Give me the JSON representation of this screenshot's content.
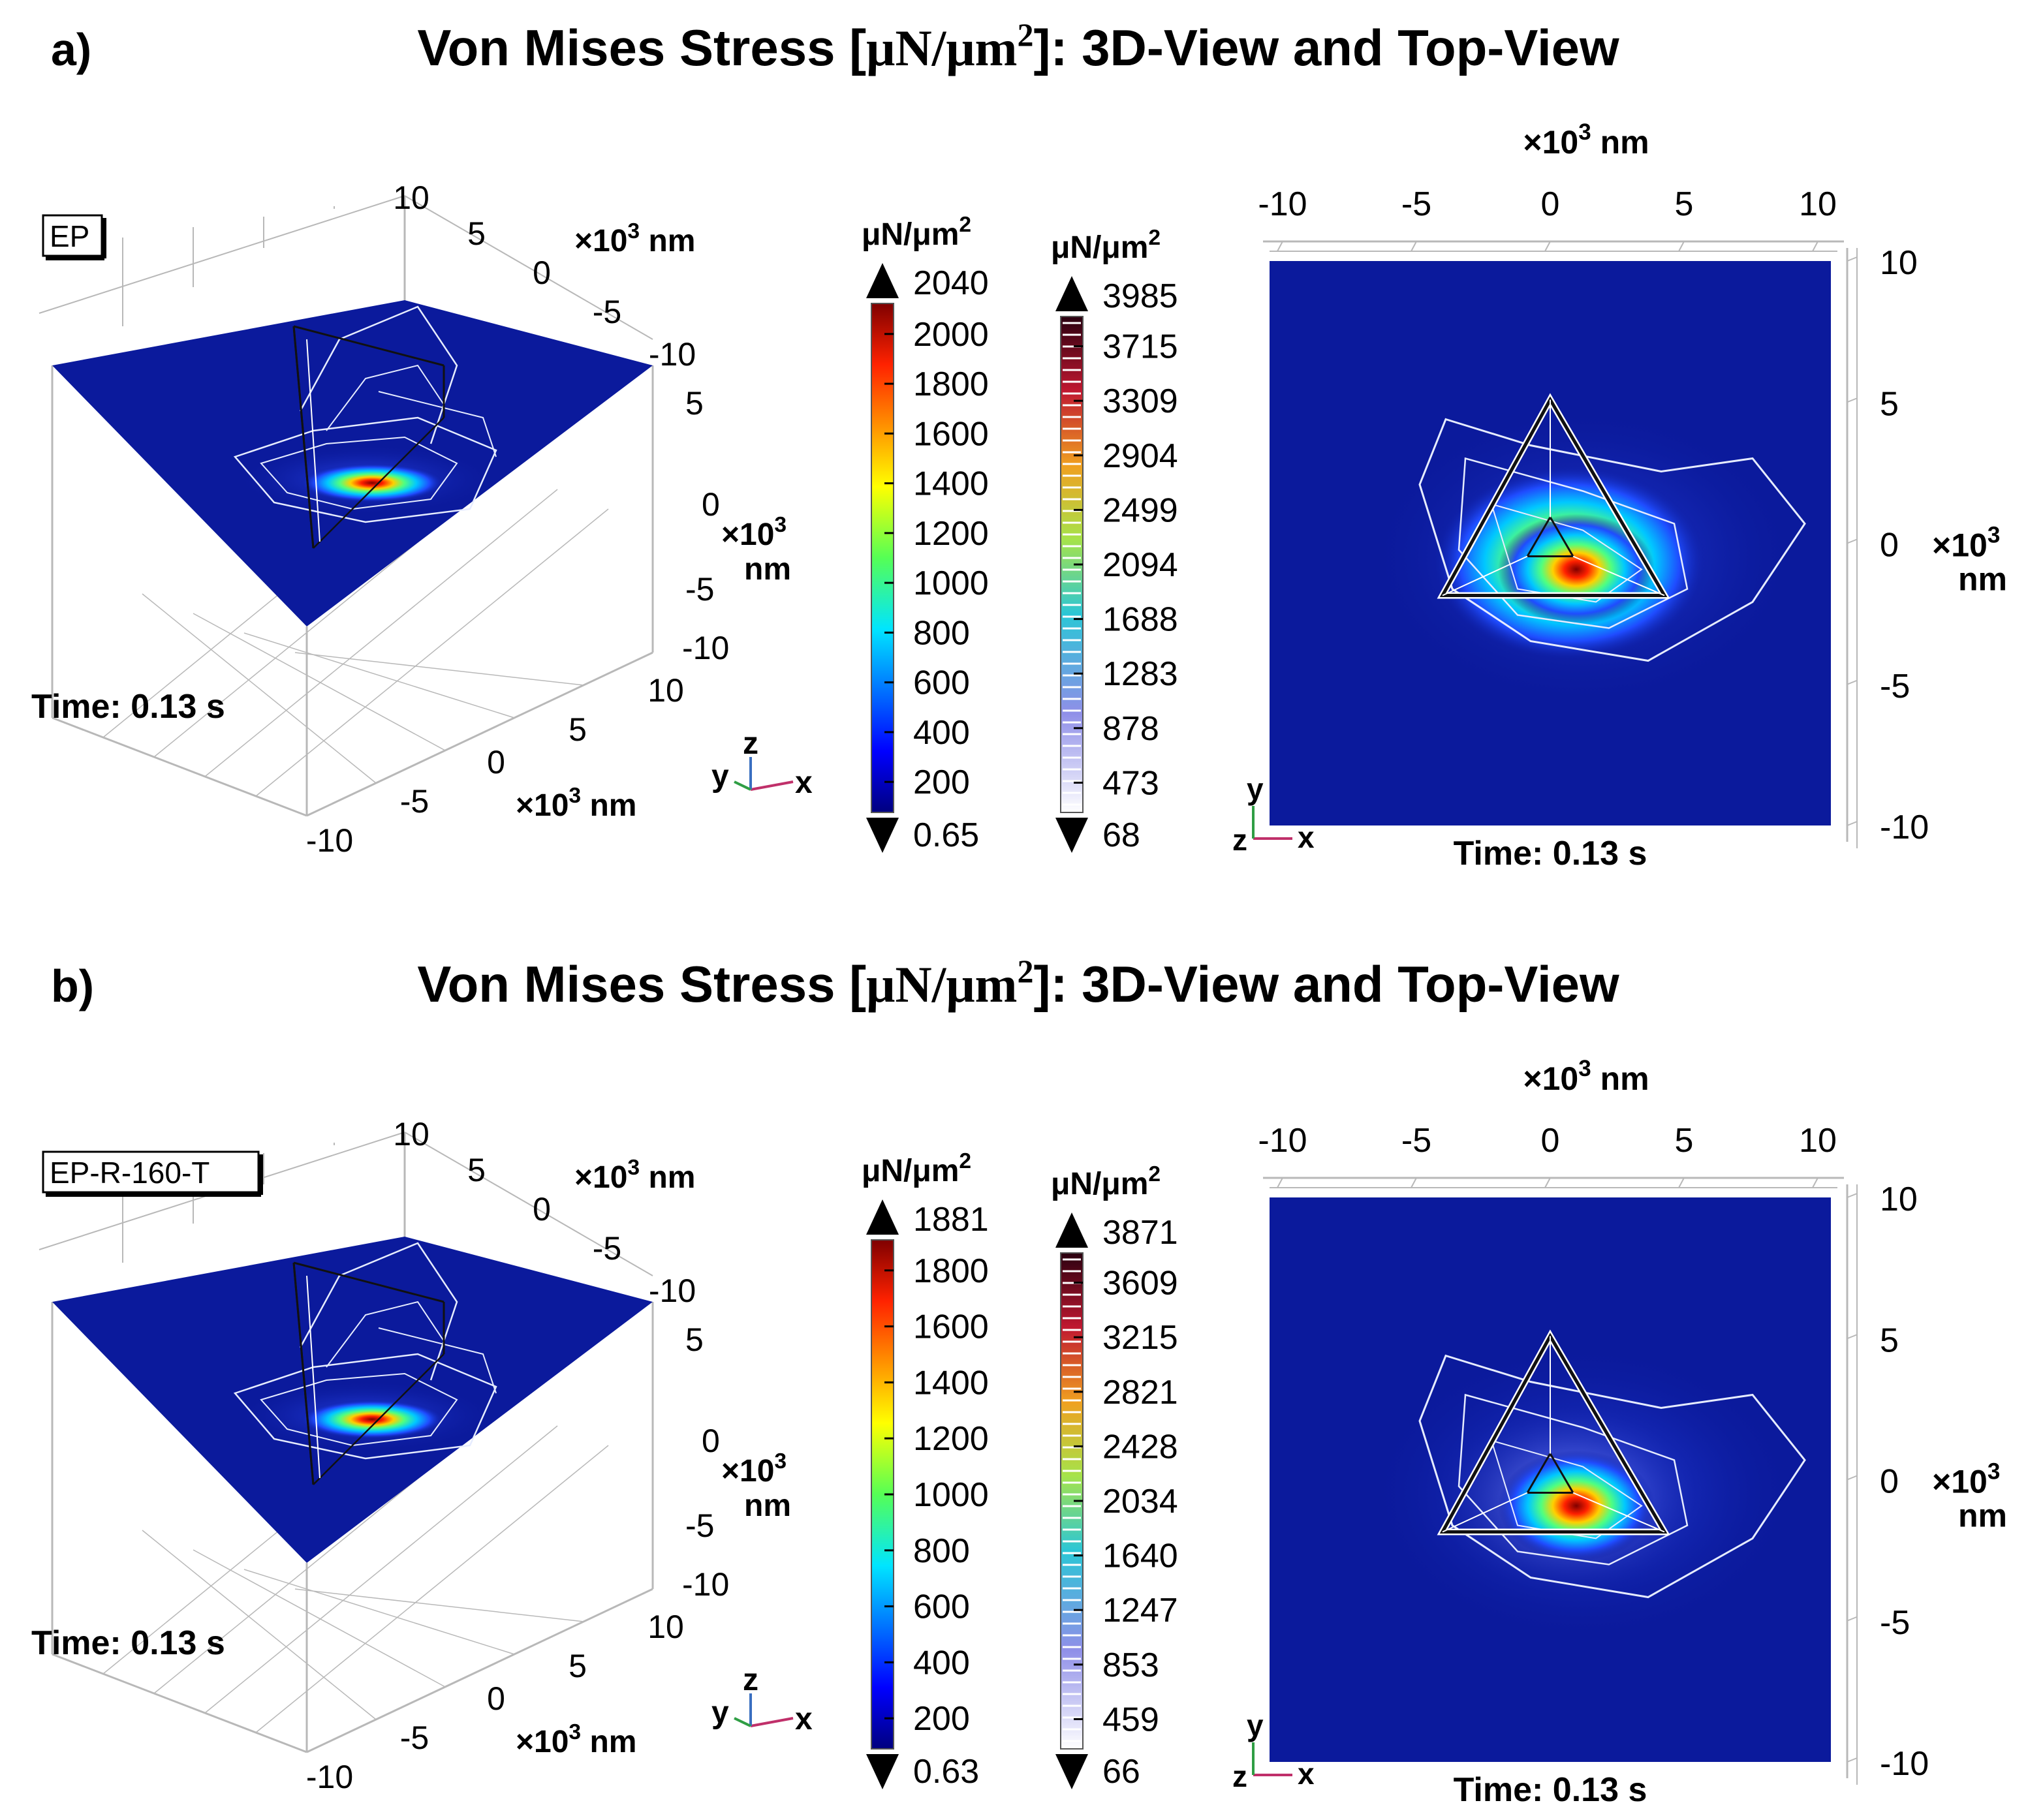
{
  "panels": [
    {
      "label": "a)",
      "title_pre": "Von Mises Stress [",
      "title_unit": "μN/μm",
      "title_sup": "2",
      "title_post": "]: 3D-View and Top-View",
      "sample_tag": "EP",
      "time_3d": "Time: 0.13 s",
      "time_top": "Time: 0.13 s",
      "axis3d": {
        "y_ticks": [
          "10",
          "5",
          "0",
          "-5",
          "-10"
        ],
        "z_ticks": [
          "5",
          "0",
          "-5",
          "-10"
        ],
        "x_ticks": [
          "10",
          "5",
          "0",
          "-5",
          "-10"
        ],
        "unit_base": "×10",
        "unit_exp": "3",
        "unit_nm": "nm",
        "triad": [
          "y",
          "z",
          "x"
        ]
      },
      "axis_top": {
        "x_ticks": [
          "-10",
          "-5",
          "0",
          "5",
          "10"
        ],
        "y_ticks": [
          "10",
          "5",
          "0",
          "-5",
          "-10"
        ],
        "unit_base": "×10",
        "unit_exp": "3",
        "unit_nm": "nm",
        "triad": [
          "y",
          "z",
          "x"
        ]
      },
      "colorbar_surface": {
        "unit": "μN/μm",
        "unit_exp": "2",
        "max": "2040",
        "min": "0.65",
        "ticks": [
          "2000",
          "1800",
          "1600",
          "1400",
          "1200",
          "1000",
          "800",
          "600",
          "400",
          "200"
        ]
      },
      "colorbar_contour": {
        "unit": "μN/μm",
        "unit_exp": "2",
        "max": "3985",
        "min": "68",
        "ticks": [
          "3715",
          "3309",
          "2904",
          "2499",
          "2094",
          "1688",
          "1283",
          "878",
          "473"
        ]
      }
    },
    {
      "label": "b)",
      "title_pre": "Von Mises Stress [",
      "title_unit": "μN/μm",
      "title_sup": "2",
      "title_post": "]: 3D-View and Top-View",
      "sample_tag": "EP-R-160-T",
      "time_3d": "Time: 0.13 s",
      "time_top": "Time: 0.13 s",
      "axis3d": {
        "y_ticks": [
          "10",
          "5",
          "0",
          "-5",
          "-10"
        ],
        "z_ticks": [
          "5",
          "0",
          "-5",
          "-10"
        ],
        "x_ticks": [
          "10",
          "5",
          "0",
          "-5",
          "-10"
        ],
        "unit_base": "×10",
        "unit_exp": "3",
        "unit_nm": "nm",
        "triad": [
          "y",
          "z",
          "x"
        ]
      },
      "axis_top": {
        "x_ticks": [
          "-10",
          "-5",
          "0",
          "5",
          "10"
        ],
        "y_ticks": [
          "10",
          "5",
          "0",
          "-5",
          "-10"
        ],
        "unit_base": "×10",
        "unit_exp": "3",
        "unit_nm": "nm",
        "triad": [
          "y",
          "z",
          "x"
        ]
      },
      "colorbar_surface": {
        "unit": "μN/μm",
        "unit_exp": "2",
        "max": "1881",
        "min": "0.63",
        "ticks": [
          "1800",
          "1600",
          "1400",
          "1200",
          "1000",
          "800",
          "600",
          "400",
          "200"
        ]
      },
      "colorbar_contour": {
        "unit": "μN/μm",
        "unit_exp": "2",
        "max": "3871",
        "min": "66",
        "ticks": [
          "3609",
          "3215",
          "2821",
          "2428",
          "2034",
          "1640",
          "1247",
          "853",
          "459"
        ]
      }
    }
  ],
  "chart_data": [
    {
      "type": "heatmap",
      "panel": "a)",
      "title": "Von Mises Stress [μN/μm2]: 3D-View and Top-View",
      "sample": "EP",
      "time": "0.13 s",
      "x_range": [
        -10,
        10
      ],
      "y_range": [
        -10,
        10
      ],
      "axis_unit": "×10^3 nm",
      "surface_range": [
        0.65,
        2040
      ],
      "surface_ticks": [
        2000,
        1800,
        1600,
        1400,
        1200,
        1000,
        800,
        600,
        400,
        200
      ],
      "contour_range": [
        68,
        3985
      ],
      "contour_levels": [
        3715,
        3309,
        2904,
        2499,
        2094,
        1688,
        1283,
        878,
        473
      ]
    },
    {
      "type": "heatmap",
      "panel": "b)",
      "title": "Von Mises Stress [μN/μm2]: 3D-View and Top-View",
      "sample": "EP-R-160-T",
      "time": "0.13 s",
      "x_range": [
        -10,
        10
      ],
      "y_range": [
        -10,
        10
      ],
      "axis_unit": "×10^3 nm",
      "surface_range": [
        0.63,
        1881
      ],
      "surface_ticks": [
        1800,
        1600,
        1400,
        1200,
        1000,
        800,
        600,
        400,
        200
      ],
      "contour_range": [
        66,
        3871
      ],
      "contour_levels": [
        3609,
        3215,
        2821,
        2428,
        2034,
        1640,
        1247,
        853,
        459
      ]
    }
  ],
  "colors": {
    "surface_bg": "#0b1a9c",
    "grid": "#b8b8b8",
    "contour_line": "#e6ecff",
    "indenter": "#111111",
    "triad_x": "#c0306a",
    "triad_y": "#2f9e44",
    "triad_z": "#3a6fc0"
  }
}
